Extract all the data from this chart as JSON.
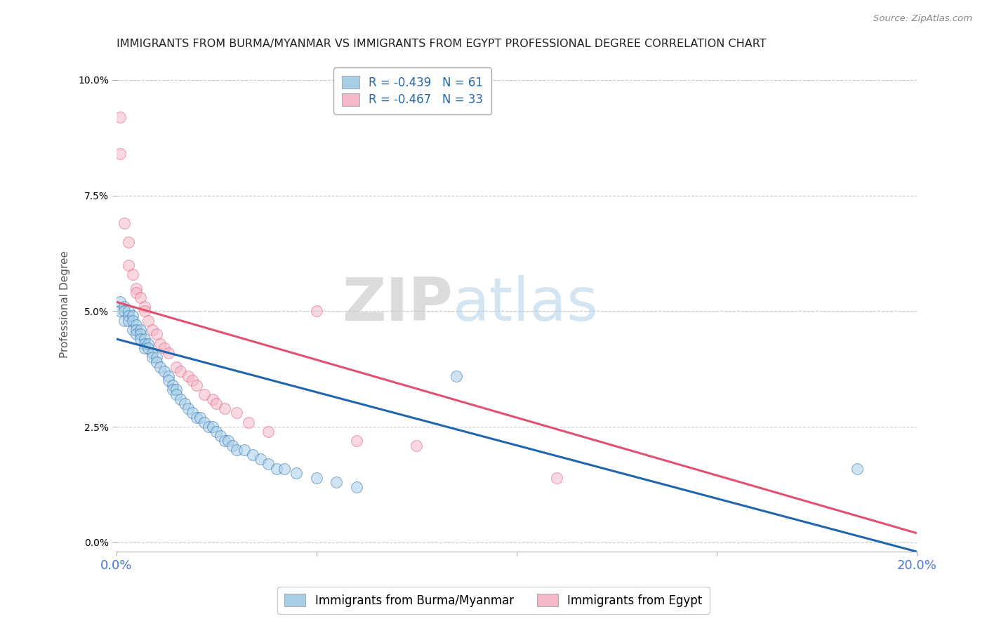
{
  "title": "IMMIGRANTS FROM BURMA/MYANMAR VS IMMIGRANTS FROM EGYPT PROFESSIONAL DEGREE CORRELATION CHART",
  "source": "Source: ZipAtlas.com",
  "ylabel": "Professional Degree",
  "xlim": [
    0.0,
    0.2
  ],
  "ylim": [
    -0.002,
    0.105
  ],
  "watermark_zip": "ZIP",
  "watermark_atlas": "atlas",
  "legend1_R": "-0.439",
  "legend1_N": "61",
  "legend2_R": "-0.467",
  "legend2_N": "33",
  "color_blue": "#a8cfe8",
  "color_pink": "#f4b8c8",
  "line_color_blue": "#2166ac",
  "line_color_pink": "#e05070",
  "background_color": "#ffffff",
  "grid_color": "#bbbbbb",
  "title_color": "#222222",
  "tick_color": "#4477cc",
  "blue_points": [
    [
      0.001,
      0.052
    ],
    [
      0.001,
      0.05
    ],
    [
      0.002,
      0.051
    ],
    [
      0.002,
      0.05
    ],
    [
      0.002,
      0.048
    ],
    [
      0.003,
      0.05
    ],
    [
      0.003,
      0.049
    ],
    [
      0.003,
      0.048
    ],
    [
      0.004,
      0.049
    ],
    [
      0.004,
      0.048
    ],
    [
      0.004,
      0.046
    ],
    [
      0.005,
      0.047
    ],
    [
      0.005,
      0.046
    ],
    [
      0.005,
      0.045
    ],
    [
      0.006,
      0.046
    ],
    [
      0.006,
      0.045
    ],
    [
      0.006,
      0.044
    ],
    [
      0.007,
      0.044
    ],
    [
      0.007,
      0.043
    ],
    [
      0.007,
      0.042
    ],
    [
      0.008,
      0.043
    ],
    [
      0.008,
      0.042
    ],
    [
      0.009,
      0.041
    ],
    [
      0.009,
      0.04
    ],
    [
      0.01,
      0.04
    ],
    [
      0.01,
      0.039
    ],
    [
      0.011,
      0.038
    ],
    [
      0.012,
      0.037
    ],
    [
      0.013,
      0.036
    ],
    [
      0.013,
      0.035
    ],
    [
      0.014,
      0.034
    ],
    [
      0.014,
      0.033
    ],
    [
      0.015,
      0.033
    ],
    [
      0.015,
      0.032
    ],
    [
      0.016,
      0.031
    ],
    [
      0.017,
      0.03
    ],
    [
      0.018,
      0.029
    ],
    [
      0.019,
      0.028
    ],
    [
      0.02,
      0.027
    ],
    [
      0.021,
      0.027
    ],
    [
      0.022,
      0.026
    ],
    [
      0.023,
      0.025
    ],
    [
      0.024,
      0.025
    ],
    [
      0.025,
      0.024
    ],
    [
      0.026,
      0.023
    ],
    [
      0.027,
      0.022
    ],
    [
      0.028,
      0.022
    ],
    [
      0.029,
      0.021
    ],
    [
      0.03,
      0.02
    ],
    [
      0.032,
      0.02
    ],
    [
      0.034,
      0.019
    ],
    [
      0.036,
      0.018
    ],
    [
      0.038,
      0.017
    ],
    [
      0.04,
      0.016
    ],
    [
      0.042,
      0.016
    ],
    [
      0.045,
      0.015
    ],
    [
      0.05,
      0.014
    ],
    [
      0.055,
      0.013
    ],
    [
      0.06,
      0.012
    ],
    [
      0.085,
      0.036
    ],
    [
      0.185,
      0.016
    ]
  ],
  "pink_points": [
    [
      0.001,
      0.092
    ],
    [
      0.001,
      0.084
    ],
    [
      0.002,
      0.069
    ],
    [
      0.003,
      0.065
    ],
    [
      0.003,
      0.06
    ],
    [
      0.004,
      0.058
    ],
    [
      0.005,
      0.055
    ],
    [
      0.005,
      0.054
    ],
    [
      0.006,
      0.053
    ],
    [
      0.007,
      0.051
    ],
    [
      0.007,
      0.05
    ],
    [
      0.008,
      0.048
    ],
    [
      0.009,
      0.046
    ],
    [
      0.01,
      0.045
    ],
    [
      0.011,
      0.043
    ],
    [
      0.012,
      0.042
    ],
    [
      0.013,
      0.041
    ],
    [
      0.015,
      0.038
    ],
    [
      0.016,
      0.037
    ],
    [
      0.018,
      0.036
    ],
    [
      0.019,
      0.035
    ],
    [
      0.02,
      0.034
    ],
    [
      0.022,
      0.032
    ],
    [
      0.024,
      0.031
    ],
    [
      0.025,
      0.03
    ],
    [
      0.027,
      0.029
    ],
    [
      0.03,
      0.028
    ],
    [
      0.033,
      0.026
    ],
    [
      0.038,
      0.024
    ],
    [
      0.05,
      0.05
    ],
    [
      0.06,
      0.022
    ],
    [
      0.075,
      0.021
    ],
    [
      0.11,
      0.014
    ]
  ],
  "blue_line_x": [
    0.0,
    0.2
  ],
  "blue_line_y": [
    0.044,
    -0.002
  ],
  "pink_line_x": [
    0.0,
    0.2
  ],
  "pink_line_y": [
    0.052,
    0.002
  ]
}
